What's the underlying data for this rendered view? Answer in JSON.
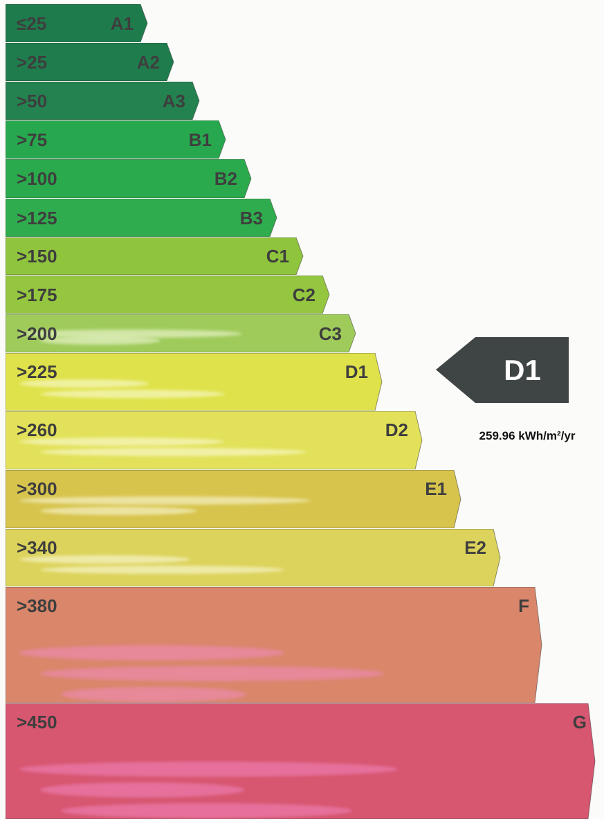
{
  "chart_data": {
    "type": "bar",
    "categories": [
      "A1",
      "A2",
      "A3",
      "B1",
      "B2",
      "B3",
      "C1",
      "C2",
      "C3",
      "D1",
      "D2",
      "E1",
      "E2",
      "F",
      "G"
    ],
    "thresholds": [
      "≤25",
      ">25",
      ">50",
      ">75",
      ">100",
      ">125",
      ">150",
      ">175",
      ">200",
      ">225",
      ">260",
      ">300",
      ">340",
      ">380",
      ">450"
    ],
    "colors": [
      "#1e7c4c",
      "#1f7d4d",
      "#23824f",
      "#27a84e",
      "#2aaa4d",
      "#2fac4d",
      "#8fc43d",
      "#94c63f",
      "#9fcb5b",
      "#dfe24b",
      "#e2e159",
      "#d7c44d",
      "#dcd35c",
      "#d9866b",
      "#d75670"
    ],
    "unit": "kWh/m²/yr",
    "rating": {
      "class": "D1",
      "value_label": "259.96 kWh/m²/yr",
      "value": 259.96,
      "color": "#3f4544"
    }
  }
}
